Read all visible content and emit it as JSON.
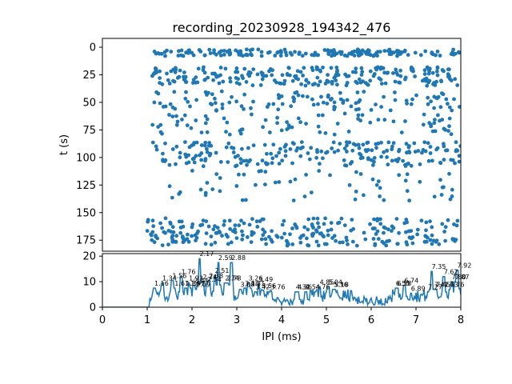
{
  "chart_data": [
    {
      "type": "scatter",
      "title": "recording_20230928_194342_476",
      "xlabel": "",
      "ylabel": "t (s)",
      "y_inverted": true,
      "xlim": [
        0,
        8
      ],
      "ylim": [
        185,
        -8
      ],
      "yticks": [
        0,
        25,
        50,
        75,
        100,
        125,
        150,
        175
      ],
      "marker_color": "#1f77b4",
      "bands": [
        {
          "t_min": 2,
          "t_max": 8,
          "ipi_min": 1.1,
          "ipi_max": 8.0,
          "count": 170
        },
        {
          "t_min": 18,
          "t_max": 35,
          "ipi_min": 1.1,
          "ipi_max": 8.0,
          "count": 230
        },
        {
          "t_min": 40,
          "t_max": 58,
          "ipi_min": 1.1,
          "ipi_max": 8.0,
          "count": 110
        },
        {
          "t_min": 60,
          "t_max": 80,
          "ipi_min": 1.1,
          "ipi_max": 8.0,
          "count": 80
        },
        {
          "t_min": 86,
          "t_max": 108,
          "ipi_min": 1.1,
          "ipi_max": 8.0,
          "count": 210
        },
        {
          "t_min": 112,
          "t_max": 140,
          "ipi_min": 1.3,
          "ipi_max": 8.0,
          "count": 60
        },
        {
          "t_min": 155,
          "t_max": 180,
          "ipi_min": 1.0,
          "ipi_max": 8.0,
          "count": 260
        }
      ]
    },
    {
      "type": "line",
      "xlabel": "IPI (ms)",
      "ylabel": "",
      "xlim": [
        0,
        8
      ],
      "ylim": [
        0,
        21
      ],
      "xticks": [
        0,
        1,
        2,
        3,
        4,
        5,
        6,
        7,
        8
      ],
      "yticks": [
        0,
        10,
        20
      ],
      "line_color": "#1f77b4",
      "peaks": [
        {
          "x": 1.16,
          "y": 8.5,
          "label": "1.16"
        },
        {
          "x": 1.34,
          "y": 10.5,
          "label": "1.34"
        },
        {
          "x": 1.56,
          "y": 11.5,
          "label": "1.56"
        },
        {
          "x": 1.61,
          "y": 8.5,
          "label": "1.61"
        },
        {
          "x": 1.76,
          "y": 13.0,
          "label": "1.76"
        },
        {
          "x": 1.86,
          "y": 8.5,
          "label": "1.86"
        },
        {
          "x": 1.93,
          "y": 10.5,
          "label": "1.93"
        },
        {
          "x": 1.97,
          "y": 8.5,
          "label": "1.97"
        },
        {
          "x": 2.04,
          "y": 9.5,
          "label": "2.04"
        },
        {
          "x": 2.09,
          "y": 8.0,
          "label": "2.09"
        },
        {
          "x": 2.17,
          "y": 20.0,
          "label": "2.17"
        },
        {
          "x": 2.24,
          "y": 11.0,
          "label": "2.24"
        },
        {
          "x": 2.34,
          "y": 10.0,
          "label": "2.34"
        },
        {
          "x": 2.38,
          "y": 11.5,
          "label": "2.38"
        },
        {
          "x": 2.51,
          "y": 13.5,
          "label": "2.51"
        },
        {
          "x": 2.59,
          "y": 18.5,
          "label": "2.59"
        },
        {
          "x": 2.74,
          "y": 10.5,
          "label": "2.74"
        },
        {
          "x": 2.78,
          "y": 10.5,
          "label": "2.78"
        },
        {
          "x": 2.88,
          "y": 18.5,
          "label": "2.88"
        },
        {
          "x": 3.08,
          "y": 8.0,
          "label": "3.08"
        },
        {
          "x": 3.18,
          "y": 8.5,
          "label": "3.18"
        },
        {
          "x": 3.26,
          "y": 10.5,
          "label": "3.26"
        },
        {
          "x": 3.31,
          "y": 8.5,
          "label": "3.31"
        },
        {
          "x": 3.42,
          "y": 7.0,
          "label": "3.42"
        },
        {
          "x": 3.49,
          "y": 10.0,
          "label": "3.49"
        },
        {
          "x": 3.56,
          "y": 7.5,
          "label": "3.56"
        },
        {
          "x": 3.76,
          "y": 7.0,
          "label": "3.76"
        },
        {
          "x": 4.32,
          "y": 7.0,
          "label": "4.32"
        },
        {
          "x": 4.36,
          "y": 7.0,
          "label": "4.36"
        },
        {
          "x": 4.54,
          "y": 7.0,
          "label": "4.54"
        },
        {
          "x": 4.76,
          "y": 7.0,
          "label": "4.76"
        },
        {
          "x": 4.85,
          "y": 9.0,
          "label": "4.85"
        },
        {
          "x": 5.04,
          "y": 9.0,
          "label": "5.04"
        },
        {
          "x": 5.16,
          "y": 8.0,
          "label": "5.16"
        },
        {
          "x": 5.18,
          "y": 8.0,
          "label": "5.18"
        },
        {
          "x": 6.55,
          "y": 8.5,
          "label": "6.55"
        },
        {
          "x": 6.58,
          "y": 8.5,
          "label": "6.58"
        },
        {
          "x": 6.74,
          "y": 9.5,
          "label": "6.74"
        },
        {
          "x": 6.89,
          "y": 6.5,
          "label": "6.89"
        },
        {
          "x": 7.27,
          "y": 7.0,
          "label": "7.27"
        },
        {
          "x": 7.35,
          "y": 15.0,
          "label": "7.35"
        },
        {
          "x": 7.41,
          "y": 8.0,
          "label": "7.41"
        },
        {
          "x": 7.45,
          "y": 8.0,
          "label": "7.45"
        },
        {
          "x": 7.63,
          "y": 8.0,
          "label": "7.63"
        },
        {
          "x": 7.62,
          "y": 13.0,
          "label": "7.62"
        },
        {
          "x": 7.76,
          "y": 8.0,
          "label": "7.76"
        },
        {
          "x": 7.8,
          "y": 11.0,
          "label": "7.80"
        },
        {
          "x": 7.87,
          "y": 11.0,
          "label": "7.87"
        },
        {
          "x": 7.92,
          "y": 15.5,
          "label": "7.92"
        }
      ]
    }
  ]
}
